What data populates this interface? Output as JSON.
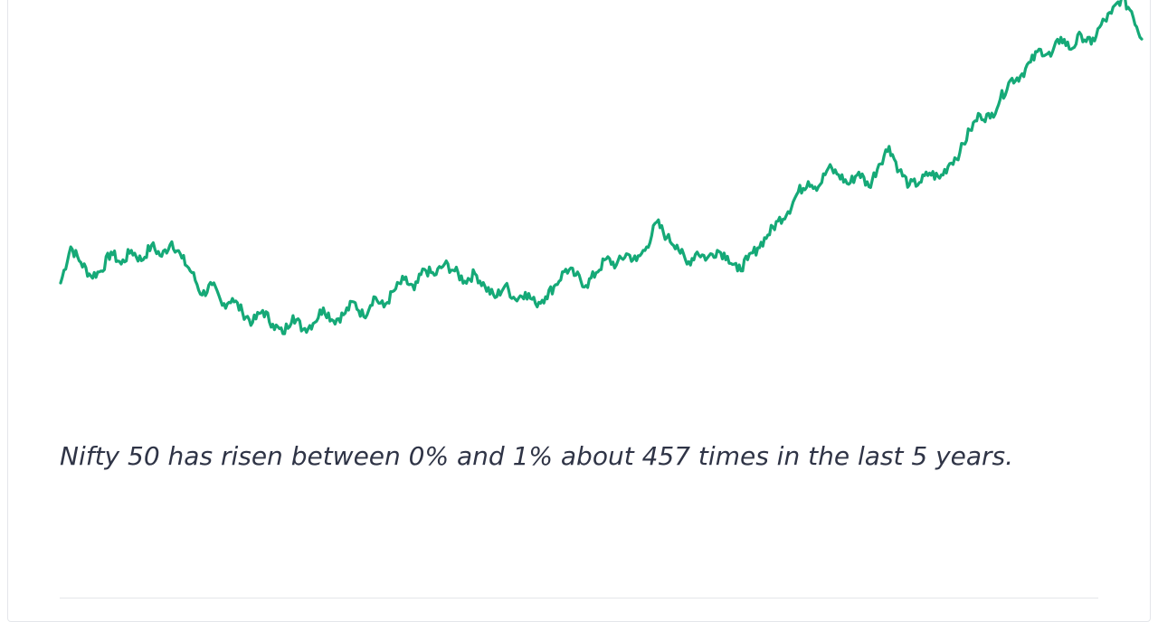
{
  "caption": "Nifty 50 has risen between 0% and 1% about 457 times in the last 5 years.",
  "colors": {
    "line": "#15a977",
    "caption": "#2f3446",
    "card_border": "#e4e6ea"
  },
  "chart_data": {
    "type": "line",
    "title": "",
    "xlabel": "",
    "ylabel": "",
    "grid": false,
    "legend": "none",
    "series": [
      {
        "values": [
          100.0,
          104.2,
          102.4,
          100.8,
          101.4,
          103.6,
          102.2,
          103.8,
          102.6,
          104.4,
          103.1,
          104.8,
          102.9,
          101.2,
          98.6,
          99.8,
          97.4,
          98.2,
          96.6,
          95.4,
          96.8,
          95.2,
          94.1,
          96.2,
          94.6,
          95.3,
          97.1,
          95.6,
          96.3,
          97.8,
          96.1,
          98.4,
          97.2,
          99.1,
          100.4,
          99.2,
          101.6,
          100.9,
          102.2,
          101.4,
          100.2,
          101.1,
          99.6,
          98.3,
          99.7,
          98.1,
          98.9,
          97.6,
          98.4,
          99.8,
          101.6,
          100.9,
          99.7,
          101.2,
          102.8,
          102.1,
          103.4,
          102.6,
          104.2,
          107.1,
          105.3,
          104.4,
          102.2,
          103.6,
          102.9,
          103.8,
          103.1,
          101.4,
          102.7,
          104.1,
          105.6,
          107.2,
          108.3,
          110.6,
          111.8,
          111.2,
          113.4,
          112.6,
          111.5,
          112.9,
          111.2,
          113.8,
          115.9,
          113.1,
          111.4,
          111.7,
          112.8,
          112.2,
          113.9,
          115.2,
          117.8,
          119.6,
          119.2,
          121.4,
          123.6,
          124.1,
          125.7,
          127.2,
          126.4,
          128.6,
          127.2,
          128.9,
          127.8,
          130.1,
          131.4,
          133.2,
          131.6,
          128.4
        ]
      }
    ],
    "x_note": "daily closes over the last 5 years (values are relative index levels estimated from the line shape; no axes are printed)"
  }
}
